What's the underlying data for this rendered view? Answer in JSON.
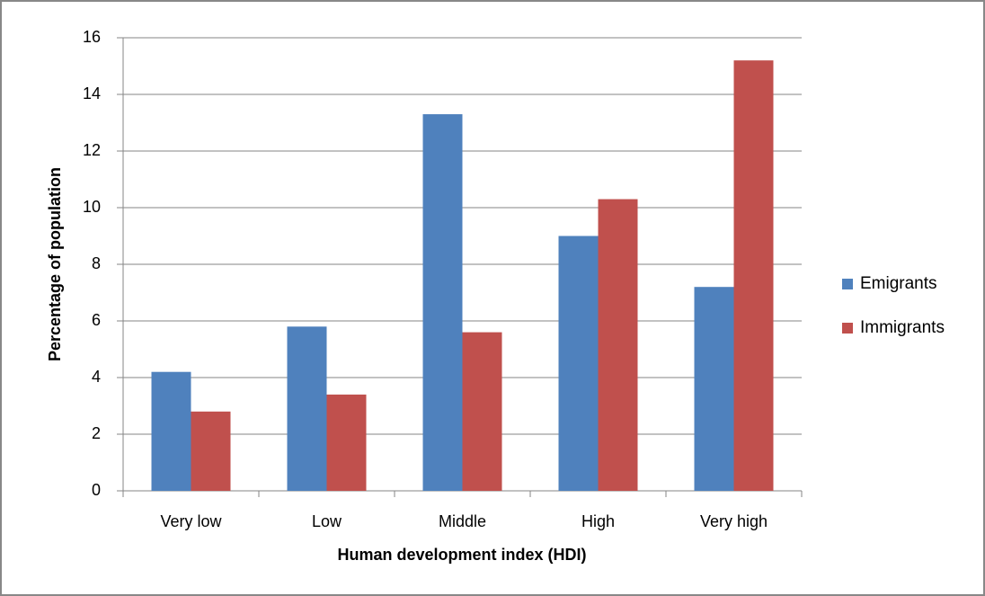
{
  "chart_data": {
    "type": "bar",
    "x_label": "Human development index (HDI)",
    "y_label": "Percentage of population",
    "categories": [
      "Very low",
      "Low",
      "Middle",
      "High",
      "Very high"
    ],
    "series": [
      {
        "name": "Emigrants",
        "color": "#4f81bd",
        "values": [
          4.2,
          5.8,
          13.3,
          9.0,
          7.2
        ]
      },
      {
        "name": "Immigrants",
        "color": "#c0504d",
        "values": [
          2.8,
          3.4,
          5.6,
          10.3,
          15.2
        ]
      }
    ],
    "ylim": [
      0,
      16
    ],
    "yticks": [
      0,
      2,
      4,
      6,
      8,
      10,
      12,
      14,
      16
    ],
    "grid": true,
    "legend": "right"
  }
}
